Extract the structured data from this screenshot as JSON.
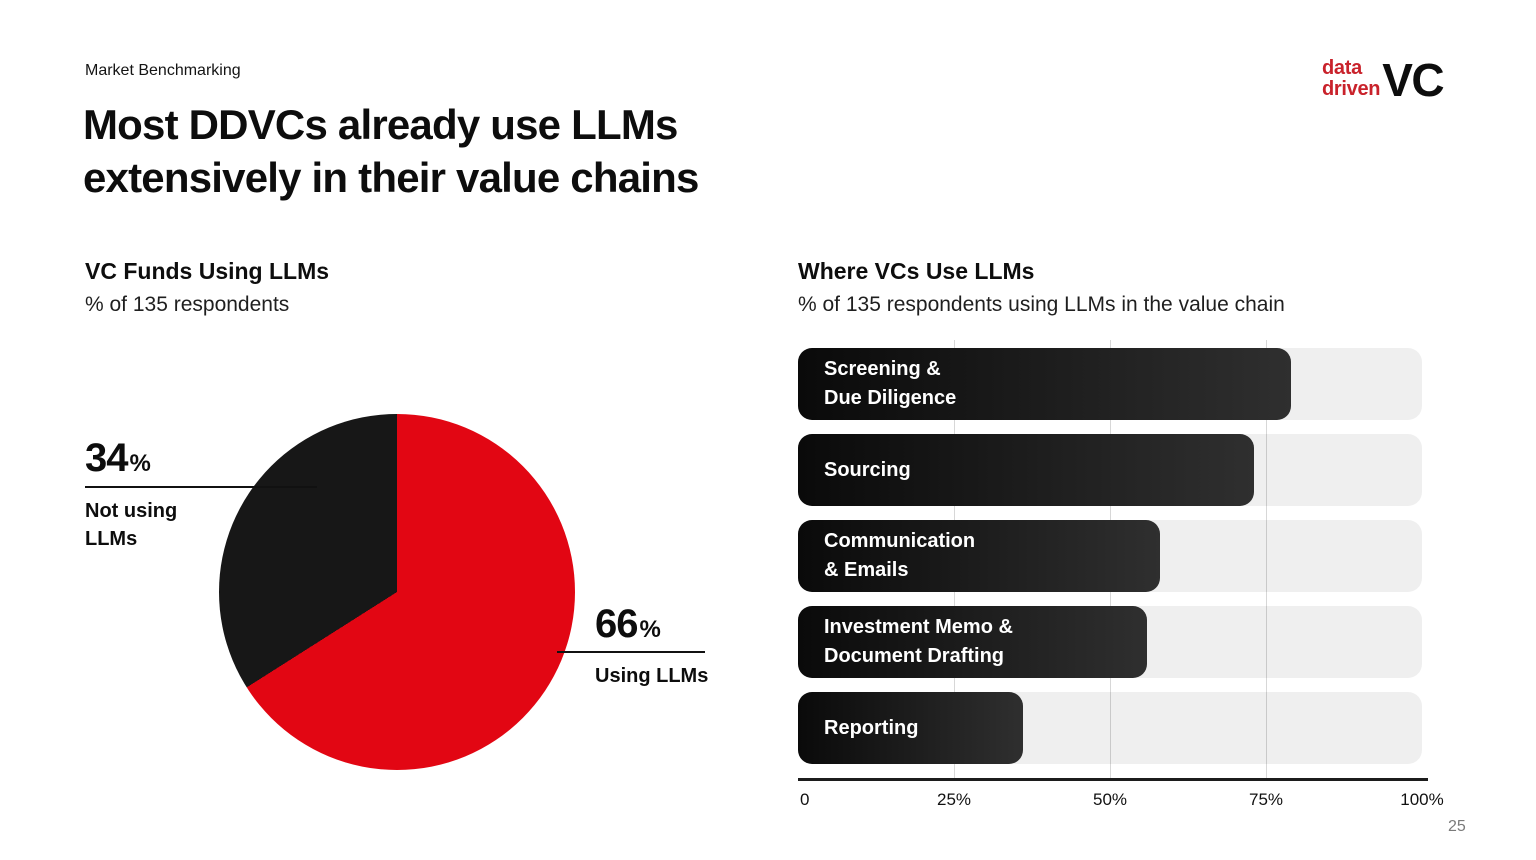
{
  "page": {
    "kicker": "Market Benchmarking",
    "title_line1": "Most DDVCs already use LLMs",
    "title_line2": "extensively in their value chains",
    "page_number": "25"
  },
  "logo": {
    "word1": "data",
    "word2": "driven",
    "suffix": "VC"
  },
  "colors": {
    "brand_red": "#c9222b",
    "pie_red": "#e20613",
    "pie_black": "#171717",
    "bar_gradient_start": "#0a0a0a",
    "bar_gradient_end": "#2f2f2f",
    "track_gray": "#efefef",
    "gridline_gray": "#d7d7d7",
    "axis_black": "#1c1c1c"
  },
  "chart_data": [
    {
      "type": "pie",
      "title": "VC Funds Using LLMs",
      "subtitle": "% of 135 respondents",
      "percent_sign": "%",
      "start_angle_deg": 0,
      "direction": "clockwise",
      "slices": [
        {
          "label": "Using LLMs",
          "value": 66,
          "color": "#e20613",
          "label_lines": [
            "Using LLMs"
          ]
        },
        {
          "label": "Not using LLMs",
          "value": 34,
          "color": "#171717",
          "label_lines": [
            "Not using",
            "LLMs"
          ]
        }
      ]
    },
    {
      "type": "bar",
      "orientation": "horizontal",
      "title": "Where VCs Use LLMs",
      "subtitle": "% of 135 respondents using LLMs in the value chain",
      "categories": [
        "Screening & Due Diligence",
        "Sourcing",
        "Communication & Emails",
        "Investment Memo & Document Drafting",
        "Reporting"
      ],
      "label_lines": [
        [
          "Screening &",
          "Due Diligence"
        ],
        [
          "Sourcing"
        ],
        [
          "Communication",
          "& Emails"
        ],
        [
          "Investment Memo &",
          "Document Drafting"
        ],
        [
          "Reporting"
        ]
      ],
      "values": [
        79,
        73,
        58,
        56,
        36
      ],
      "xlabel": "",
      "ylabel": "",
      "xlim": [
        0,
        100
      ],
      "xticks": [
        "0",
        "25%",
        "50%",
        "75%",
        "100%"
      ],
      "gridlines_pct": [
        25,
        50,
        75
      ],
      "legend": "none",
      "grid": "vertical"
    }
  ]
}
